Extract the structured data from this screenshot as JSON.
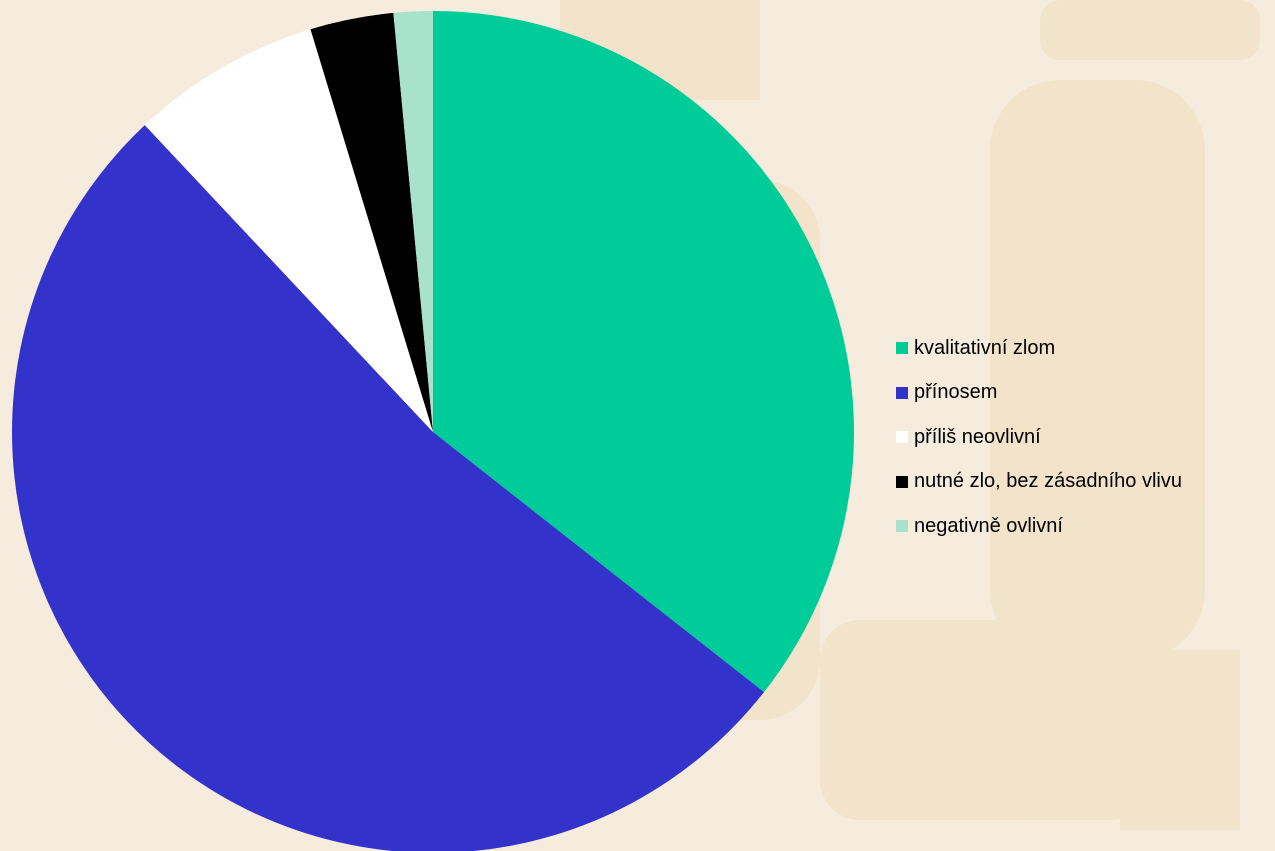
{
  "chart_data": {
    "type": "pie",
    "legend_position": "right",
    "series": [
      {
        "label": "kvalitativní zlom",
        "value": 35.6,
        "color": "#00cc99"
      },
      {
        "label": "přínosem",
        "value": 52.4,
        "color": "#3333cc"
      },
      {
        "label": "příliš neovlivní",
        "value": 7.3,
        "color": "#ffffff"
      },
      {
        "label": "nutné zlo, bez zásadního vlivu",
        "value": 3.2,
        "color": "#000000"
      },
      {
        "label": "negativně ovlivní",
        "value": 1.5,
        "color": "#a8e2cc"
      }
    ]
  }
}
